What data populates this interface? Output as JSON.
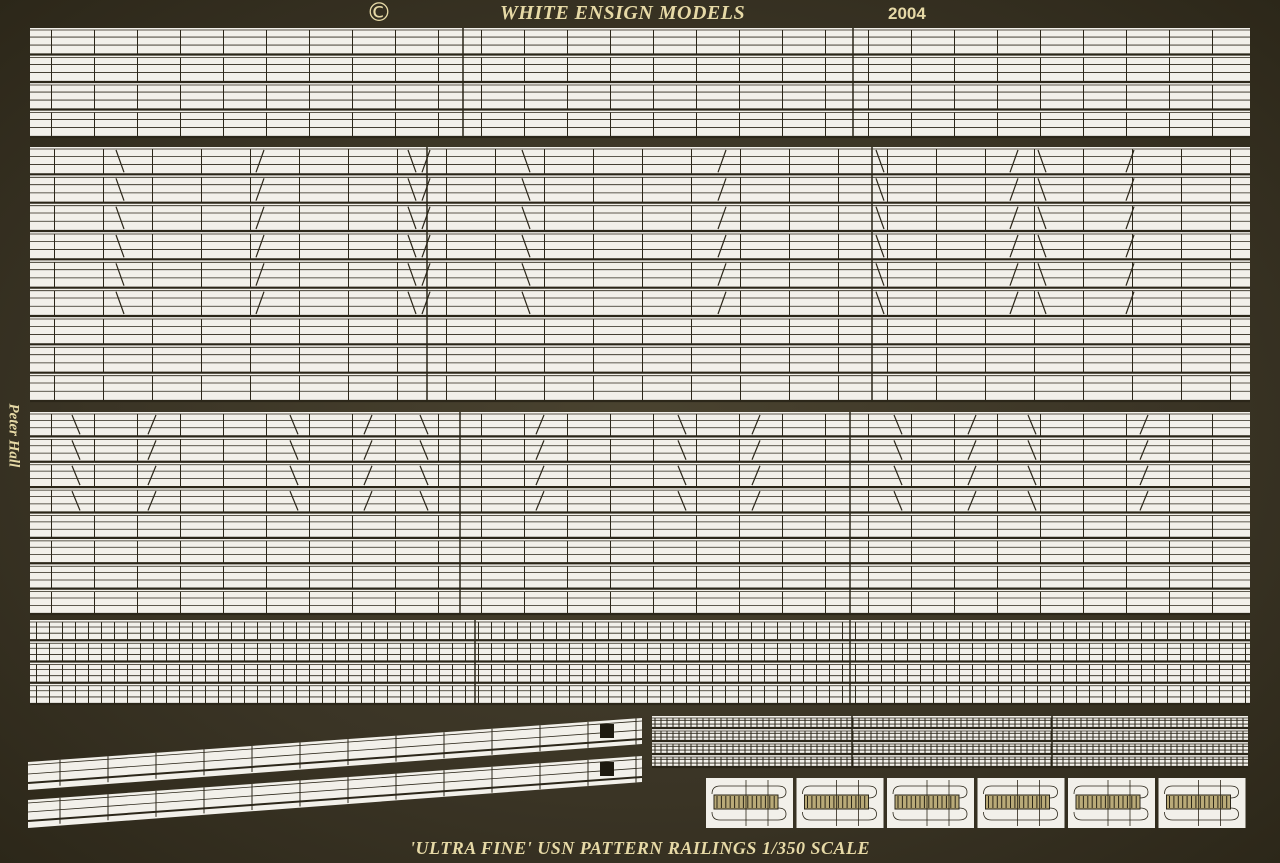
{
  "header": {
    "copyright_symbol": "©",
    "brand": "WHITE ENSIGN MODELS",
    "year": "2004"
  },
  "footer": {
    "caption": "'ULTRA FINE'  USN PATTERN RAILINGS 1/350 SCALE"
  },
  "signature": "Peter Hall",
  "colors": {
    "brass": "#3b3526",
    "etch": "#f2f0ea",
    "line": "#2b2619",
    "text": "#e6d9a6"
  }
}
